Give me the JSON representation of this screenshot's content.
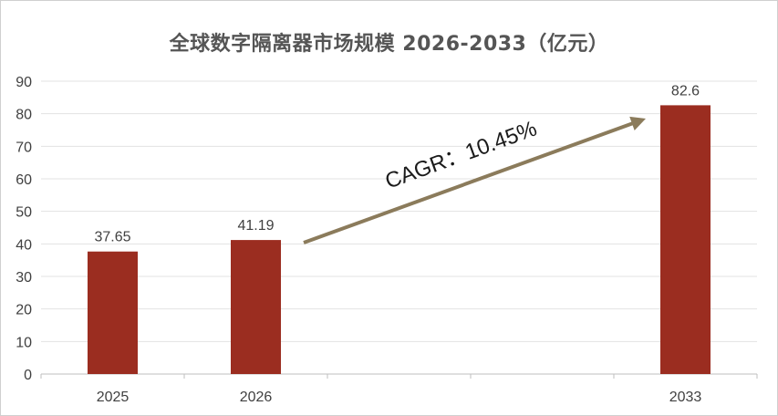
{
  "chart_data": {
    "type": "bar",
    "title": "全球数字隔离器市场规模 2026-2033（亿元）",
    "categories": [
      "2025",
      "2026",
      "",
      "",
      "2033"
    ],
    "values": [
      37.65,
      41.19,
      null,
      null,
      82.6
    ],
    "data_labels": [
      "37.65",
      "41.19",
      "",
      "",
      "82.6"
    ],
    "yticks": [
      "0",
      "10",
      "20",
      "30",
      "40",
      "50",
      "60",
      "70",
      "80",
      "90"
    ],
    "ylim": [
      0,
      90
    ],
    "grid": true,
    "bar_color": "#9b2d20",
    "annotation": {
      "text": "CAGR：10.45%",
      "arrow_color": "#8b7b5b"
    }
  }
}
